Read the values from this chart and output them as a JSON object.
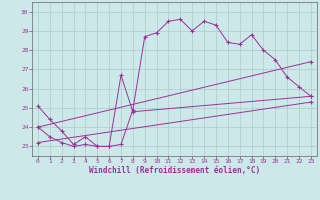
{
  "xlabel": "Windchill (Refroidissement éolien,°C)",
  "background_color": "#cce8e8",
  "grid_color": "#aacccc",
  "line_color": "#993399",
  "spine_color": "#666666",
  "xmin": -0.5,
  "xmax": 23.5,
  "ymin": 22.5,
  "ymax": 30.5,
  "yticks": [
    23,
    24,
    25,
    26,
    27,
    28,
    29,
    30
  ],
  "xticks": [
    0,
    1,
    2,
    3,
    4,
    5,
    6,
    7,
    8,
    9,
    10,
    11,
    12,
    13,
    14,
    15,
    16,
    17,
    18,
    19,
    20,
    21,
    22,
    23
  ],
  "series": [
    {
      "x": [
        0,
        1,
        2,
        3,
        4,
        5,
        6,
        7,
        8,
        9,
        10,
        11,
        12,
        13,
        14,
        15,
        16,
        17,
        18,
        19,
        20,
        21,
        22,
        23
      ],
      "y": [
        25.1,
        24.4,
        23.8,
        23.1,
        23.5,
        23.0,
        23.0,
        23.1,
        24.9,
        28.7,
        28.9,
        29.5,
        29.6,
        29.0,
        29.5,
        29.3,
        28.4,
        28.3,
        28.8,
        28.0,
        27.5,
        26.6,
        26.1,
        25.6
      ]
    },
    {
      "x": [
        0,
        1,
        2,
        3,
        4,
        5,
        6,
        7,
        8,
        23
      ],
      "y": [
        24.0,
        23.5,
        23.2,
        23.0,
        23.1,
        23.0,
        23.0,
        26.7,
        24.8,
        25.6
      ]
    },
    {
      "x": [
        0,
        23
      ],
      "y": [
        23.2,
        25.3
      ]
    },
    {
      "x": [
        0,
        23
      ],
      "y": [
        24.0,
        27.4
      ]
    }
  ]
}
